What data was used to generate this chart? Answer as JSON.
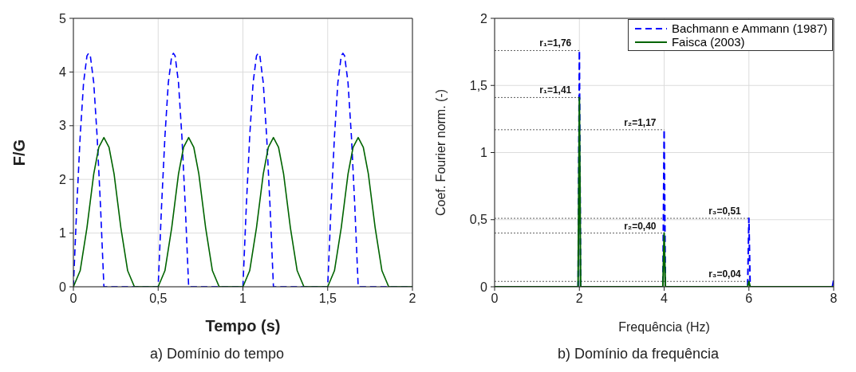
{
  "chart_data": [
    {
      "type": "line",
      "title": "a)  Domínio do tempo",
      "xlabel": "Tempo (s)",
      "ylabel": "F/G",
      "xlim": [
        0,
        2
      ],
      "ylim": [
        0,
        5
      ],
      "xticks": [
        0,
        {
          "value": 0.5,
          "label": "0,5"
        },
        1,
        {
          "value": 1.5,
          "label": "1,5"
        },
        2
      ],
      "yticks": [
        0,
        1,
        2,
        3,
        4,
        5
      ],
      "grid": true,
      "series": [
        {
          "color": "#0000ff",
          "line_style": "dashed",
          "x": [
            0,
            0.02,
            0.04,
            0.06,
            0.08,
            0.09,
            0.1,
            0.12,
            0.14,
            0.16,
            0.18,
            0.5,
            0.52,
            0.54,
            0.56,
            0.58,
            0.59,
            0.6,
            0.62,
            0.64,
            0.66,
            0.68,
            1,
            1.02,
            1.04,
            1.06,
            1.08,
            1.09,
            1.1,
            1.12,
            1.14,
            1.16,
            1.18,
            1.5,
            1.52,
            1.54,
            1.56,
            1.58,
            1.59,
            1.6,
            1.62,
            1.64,
            1.66,
            1.68,
            2
          ],
          "values": [
            0,
            1.5,
            2.8,
            3.8,
            4.3,
            4.35,
            4.3,
            3.8,
            2.8,
            1.5,
            0,
            0,
            1.5,
            2.8,
            3.8,
            4.3,
            4.35,
            4.3,
            3.8,
            2.8,
            1.5,
            0,
            0,
            1.5,
            2.8,
            3.8,
            4.3,
            4.35,
            4.3,
            3.8,
            2.8,
            1.5,
            0,
            0,
            1.5,
            2.8,
            3.8,
            4.3,
            4.35,
            4.3,
            3.8,
            2.8,
            1.5,
            0,
            0
          ]
        },
        {
          "color": "#006400",
          "line_style": "solid",
          "x": [
            0,
            0.04,
            0.08,
            0.12,
            0.15,
            0.18,
            0.21,
            0.24,
            0.28,
            0.32,
            0.36,
            0.5,
            0.54,
            0.58,
            0.62,
            0.65,
            0.68,
            0.71,
            0.74,
            0.78,
            0.82,
            0.86,
            1,
            1.04,
            1.08,
            1.12,
            1.15,
            1.18,
            1.21,
            1.24,
            1.28,
            1.32,
            1.36,
            1.5,
            1.54,
            1.58,
            1.62,
            1.65,
            1.68,
            1.71,
            1.74,
            1.78,
            1.82,
            1.86,
            2
          ],
          "values": [
            0,
            0.3,
            1.1,
            2.1,
            2.6,
            2.78,
            2.6,
            2.1,
            1.1,
            0.3,
            0,
            0,
            0.3,
            1.1,
            2.1,
            2.6,
            2.78,
            2.6,
            2.1,
            1.1,
            0.3,
            0,
            0,
            0.3,
            1.1,
            2.1,
            2.6,
            2.78,
            2.6,
            2.1,
            1.1,
            0.3,
            0,
            0,
            0.3,
            1.1,
            2.1,
            2.6,
            2.78,
            2.6,
            2.1,
            1.1,
            0.3,
            0,
            0
          ]
        }
      ]
    },
    {
      "type": "line",
      "title": "b)  Domínio da frequência",
      "xlabel": "Frequência (Hz)",
      "ylabel": "Coef. Fourier norm. (-)",
      "xlim": [
        0,
        8
      ],
      "ylim": [
        0,
        2
      ],
      "xticks": [
        0,
        2,
        4,
        6,
        8
      ],
      "yticks": [
        0,
        {
          "value": 0.5,
          "label": "0,5"
        },
        1,
        {
          "value": 1.5,
          "label": "1,5"
        },
        2
      ],
      "grid": true,
      "legend": "top right",
      "series": [
        {
          "name": "Bachmann e Ammann (1987)",
          "color": "#0000ff",
          "line_style": "dashed",
          "x": [
            0,
            1.97,
            2,
            2.03,
            3.97,
            4,
            4.03,
            5.97,
            6,
            6.03,
            7.97,
            8
          ],
          "values": [
            0,
            0,
            1.76,
            0,
            0,
            1.17,
            0,
            0,
            0.51,
            0,
            0,
            0.05
          ]
        },
        {
          "name": "Faisca (2003)",
          "color": "#006400",
          "line_style": "solid",
          "x": [
            0,
            1.97,
            2,
            2.03,
            3.97,
            4,
            4.03,
            5.97,
            6,
            6.03,
            8
          ],
          "values": [
            0,
            0,
            1.41,
            0,
            0,
            0.4,
            0,
            0,
            0.04,
            0,
            0
          ]
        }
      ],
      "annotations": [
        {
          "text": "r₁=1,76",
          "x": 2,
          "y": 1.76
        },
        {
          "text": "r₁=1,41",
          "x": 2,
          "y": 1.41
        },
        {
          "text": "r₂=1,17",
          "x": 4,
          "y": 1.17
        },
        {
          "text": "r₂=0,40",
          "x": 4,
          "y": 0.4
        },
        {
          "text": "r₃=0,51",
          "x": 6,
          "y": 0.51
        },
        {
          "text": "r₃=0,04",
          "x": 6,
          "y": 0.04
        }
      ]
    }
  ]
}
